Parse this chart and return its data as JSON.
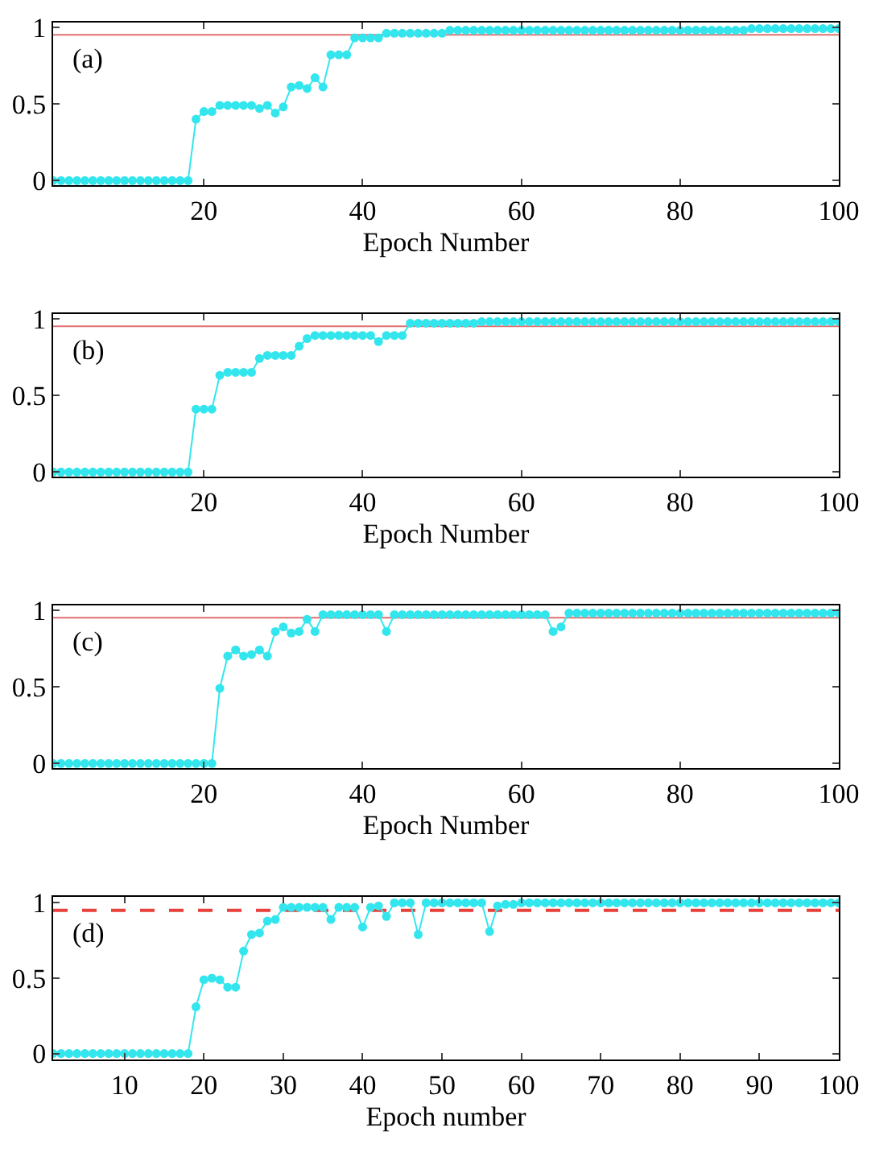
{
  "chart_data": [
    {
      "type": "line",
      "xlabel": "Epoch Number",
      "annotations": [
        "(a)"
      ],
      "marker": "circle",
      "line_style": "solid",
      "grid": false,
      "xlim": [
        1,
        100
      ],
      "xticks": [
        20,
        40,
        60,
        80,
        100
      ],
      "ylim": [
        -0.03,
        1.03
      ],
      "yticks": [
        0,
        0.5,
        1
      ],
      "x": [
        1,
        2,
        3,
        4,
        5,
        6,
        7,
        8,
        9,
        10,
        11,
        12,
        13,
        14,
        15,
        16,
        17,
        18,
        19,
        20,
        21,
        22,
        23,
        24,
        25,
        26,
        27,
        28,
        29,
        30,
        31,
        32,
        33,
        34,
        35,
        36,
        37,
        38,
        39,
        40,
        41,
        42,
        43,
        44,
        45,
        46,
        47,
        48,
        49,
        50,
        51,
        52,
        53,
        54,
        55,
        56,
        57,
        58,
        59,
        60,
        61,
        62,
        63,
        64,
        65,
        66,
        67,
        68,
        69,
        70,
        71,
        72,
        73,
        74,
        75,
        76,
        77,
        78,
        79,
        80,
        81,
        82,
        83,
        84,
        85,
        86,
        87,
        88,
        89,
        90,
        91,
        92,
        93,
        94,
        95,
        96,
        97,
        98,
        99,
        100
      ],
      "ref_lines": [
        {
          "axis": "y",
          "value": 0.95,
          "color": "#e07070",
          "line_style": "solid"
        }
      ],
      "series": [
        {
          "color": "#33e6ee",
          "values": [
            0,
            0,
            0,
            0,
            0,
            0,
            0,
            0,
            0,
            0,
            0,
            0,
            0,
            0,
            0,
            0,
            0,
            0,
            0.4,
            0.45,
            0.45,
            0.49,
            0.49,
            0.49,
            0.49,
            0.49,
            0.47,
            0.49,
            0.44,
            0.48,
            0.61,
            0.62,
            0.6,
            0.67,
            0.61,
            0.82,
            0.82,
            0.82,
            0.93,
            0.93,
            0.93,
            0.93,
            0.96,
            0.96,
            0.96,
            0.96,
            0.96,
            0.96,
            0.96,
            0.96,
            0.98,
            0.98,
            0.98,
            0.98,
            0.98,
            0.98,
            0.98,
            0.98,
            0.98,
            0.98,
            0.98,
            0.98,
            0.98,
            0.98,
            0.98,
            0.98,
            0.98,
            0.98,
            0.98,
            0.98,
            0.98,
            0.98,
            0.98,
            0.98,
            0.98,
            0.98,
            0.98,
            0.98,
            0.98,
            0.98,
            0.98,
            0.98,
            0.98,
            0.98,
            0.98,
            0.98,
            0.98,
            0.98,
            0.99,
            0.99,
            0.99,
            0.99,
            0.99,
            0.99,
            0.99,
            0.99,
            0.99,
            0.99,
            0.99,
            0.99
          ]
        }
      ]
    },
    {
      "type": "line",
      "xlabel": "Epoch Number",
      "annotations": [
        "(b)"
      ],
      "marker": "circle",
      "line_style": "solid",
      "grid": false,
      "xlim": [
        1,
        100
      ],
      "xticks": [
        20,
        40,
        60,
        80,
        100
      ],
      "ylim": [
        -0.03,
        1.03
      ],
      "yticks": [
        0,
        0.5,
        1
      ],
      "x": [
        1,
        2,
        3,
        4,
        5,
        6,
        7,
        8,
        9,
        10,
        11,
        12,
        13,
        14,
        15,
        16,
        17,
        18,
        19,
        20,
        21,
        22,
        23,
        24,
        25,
        26,
        27,
        28,
        29,
        30,
        31,
        32,
        33,
        34,
        35,
        36,
        37,
        38,
        39,
        40,
        41,
        42,
        43,
        44,
        45,
        46,
        47,
        48,
        49,
        50,
        51,
        52,
        53,
        54,
        55,
        56,
        57,
        58,
        59,
        60,
        61,
        62,
        63,
        64,
        65,
        66,
        67,
        68,
        69,
        70,
        71,
        72,
        73,
        74,
        75,
        76,
        77,
        78,
        79,
        80,
        81,
        82,
        83,
        84,
        85,
        86,
        87,
        88,
        89,
        90,
        91,
        92,
        93,
        94,
        95,
        96,
        97,
        98,
        99,
        100
      ],
      "ref_lines": [
        {
          "axis": "y",
          "value": 0.95,
          "color": "#e07070",
          "line_style": "solid"
        }
      ],
      "series": [
        {
          "color": "#33e6ee",
          "values": [
            0,
            0,
            0,
            0,
            0,
            0,
            0,
            0,
            0,
            0,
            0,
            0,
            0,
            0,
            0,
            0,
            0,
            0,
            0.41,
            0.41,
            0.41,
            0.63,
            0.65,
            0.65,
            0.65,
            0.65,
            0.74,
            0.76,
            0.76,
            0.76,
            0.76,
            0.82,
            0.87,
            0.89,
            0.89,
            0.89,
            0.89,
            0.89,
            0.89,
            0.89,
            0.89,
            0.85,
            0.89,
            0.89,
            0.89,
            0.97,
            0.97,
            0.97,
            0.97,
            0.97,
            0.97,
            0.97,
            0.97,
            0.97,
            0.98,
            0.98,
            0.98,
            0.98,
            0.98,
            0.98,
            0.98,
            0.98,
            0.98,
            0.98,
            0.98,
            0.98,
            0.98,
            0.98,
            0.98,
            0.98,
            0.98,
            0.98,
            0.98,
            0.98,
            0.98,
            0.98,
            0.98,
            0.98,
            0.98,
            0.98,
            0.98,
            0.98,
            0.98,
            0.98,
            0.98,
            0.98,
            0.98,
            0.98,
            0.98,
            0.98,
            0.98,
            0.98,
            0.98,
            0.98,
            0.98,
            0.98,
            0.98,
            0.98,
            0.98,
            0.98
          ]
        }
      ]
    },
    {
      "type": "line",
      "xlabel": "Epoch Number",
      "annotations": [
        "(c)"
      ],
      "marker": "circle",
      "line_style": "solid",
      "grid": false,
      "xlim": [
        1,
        100
      ],
      "xticks": [
        20,
        40,
        60,
        80,
        100
      ],
      "ylim": [
        -0.03,
        1.03
      ],
      "yticks": [
        0,
        0.5,
        1
      ],
      "x": [
        1,
        2,
        3,
        4,
        5,
        6,
        7,
        8,
        9,
        10,
        11,
        12,
        13,
        14,
        15,
        16,
        17,
        18,
        19,
        20,
        21,
        22,
        23,
        24,
        25,
        26,
        27,
        28,
        29,
        30,
        31,
        32,
        33,
        34,
        35,
        36,
        37,
        38,
        39,
        40,
        41,
        42,
        43,
        44,
        45,
        46,
        47,
        48,
        49,
        50,
        51,
        52,
        53,
        54,
        55,
        56,
        57,
        58,
        59,
        60,
        61,
        62,
        63,
        64,
        65,
        66,
        67,
        68,
        69,
        70,
        71,
        72,
        73,
        74,
        75,
        76,
        77,
        78,
        79,
        80,
        81,
        82,
        83,
        84,
        85,
        86,
        87,
        88,
        89,
        90,
        91,
        92,
        93,
        94,
        95,
        96,
        97,
        98,
        99,
        100
      ],
      "ref_lines": [
        {
          "axis": "y",
          "value": 0.95,
          "color": "#e07070",
          "line_style": "solid"
        }
      ],
      "series": [
        {
          "color": "#33e6ee",
          "values": [
            0,
            0,
            0,
            0,
            0,
            0,
            0,
            0,
            0,
            0,
            0,
            0,
            0,
            0,
            0,
            0,
            0,
            0,
            0,
            0,
            0,
            0.49,
            0.7,
            0.74,
            0.7,
            0.71,
            0.74,
            0.7,
            0.86,
            0.89,
            0.85,
            0.86,
            0.94,
            0.86,
            0.97,
            0.97,
            0.97,
            0.97,
            0.97,
            0.97,
            0.97,
            0.97,
            0.86,
            0.97,
            0.97,
            0.97,
            0.97,
            0.97,
            0.97,
            0.97,
            0.97,
            0.97,
            0.97,
            0.97,
            0.97,
            0.97,
            0.97,
            0.97,
            0.97,
            0.97,
            0.97,
            0.97,
            0.97,
            0.86,
            0.89,
            0.98,
            0.98,
            0.98,
            0.98,
            0.98,
            0.98,
            0.98,
            0.98,
            0.98,
            0.98,
            0.98,
            0.98,
            0.98,
            0.98,
            0.98,
            0.98,
            0.98,
            0.98,
            0.98,
            0.98,
            0.98,
            0.98,
            0.98,
            0.98,
            0.98,
            0.98,
            0.98,
            0.98,
            0.98,
            0.98,
            0.98,
            0.98,
            0.98,
            0.98,
            0.98
          ]
        }
      ]
    },
    {
      "type": "line",
      "xlabel": "Epoch number",
      "annotations": [
        "(d)"
      ],
      "marker": "circle",
      "line_style": "solid",
      "grid": false,
      "xlim": [
        1,
        100
      ],
      "xticks": [
        10,
        20,
        30,
        40,
        50,
        60,
        70,
        80,
        90,
        100
      ],
      "ylim": [
        -0.04,
        1.04
      ],
      "yticks": [
        0,
        0.5,
        1
      ],
      "x": [
        1,
        2,
        3,
        4,
        5,
        6,
        7,
        8,
        9,
        10,
        11,
        12,
        13,
        14,
        15,
        16,
        17,
        18,
        19,
        20,
        21,
        22,
        23,
        24,
        25,
        26,
        27,
        28,
        29,
        30,
        31,
        32,
        33,
        34,
        35,
        36,
        37,
        38,
        39,
        40,
        41,
        42,
        43,
        44,
        45,
        46,
        47,
        48,
        49,
        50,
        51,
        52,
        53,
        54,
        55,
        56,
        57,
        58,
        59,
        60,
        61,
        62,
        63,
        64,
        65,
        66,
        67,
        68,
        69,
        70,
        71,
        72,
        73,
        74,
        75,
        76,
        77,
        78,
        79,
        80,
        81,
        82,
        83,
        84,
        85,
        86,
        87,
        88,
        89,
        90,
        91,
        92,
        93,
        94,
        95,
        96,
        97,
        98,
        99,
        100
      ],
      "ref_lines": [
        {
          "axis": "y",
          "value": 0.95,
          "color": "#e8403a",
          "line_style": "dashed"
        }
      ],
      "series": [
        {
          "color": "#33e6ee",
          "values": [
            0,
            0,
            0,
            0,
            0,
            0,
            0,
            0,
            0,
            0,
            0,
            0,
            0,
            0,
            0,
            0,
            0,
            0,
            0.31,
            0.49,
            0.5,
            0.49,
            0.44,
            0.44,
            0.68,
            0.79,
            0.8,
            0.88,
            0.89,
            0.97,
            0.97,
            0.97,
            0.97,
            0.97,
            0.97,
            0.89,
            0.97,
            0.97,
            0.97,
            0.84,
            0.97,
            0.98,
            0.91,
            1,
            1,
            1,
            0.79,
            1,
            1,
            1,
            1,
            1,
            1,
            1,
            1,
            0.81,
            0.98,
            0.99,
            0.99,
            1,
            1,
            1,
            1,
            1,
            1,
            1,
            1,
            1,
            1,
            1,
            1,
            1,
            1,
            1,
            1,
            1,
            1,
            1,
            1,
            1,
            1,
            1,
            1,
            1,
            1,
            1,
            1,
            1,
            1,
            1,
            1,
            1,
            1,
            1,
            1,
            1,
            1,
            1,
            1,
            1
          ]
        }
      ]
    }
  ]
}
